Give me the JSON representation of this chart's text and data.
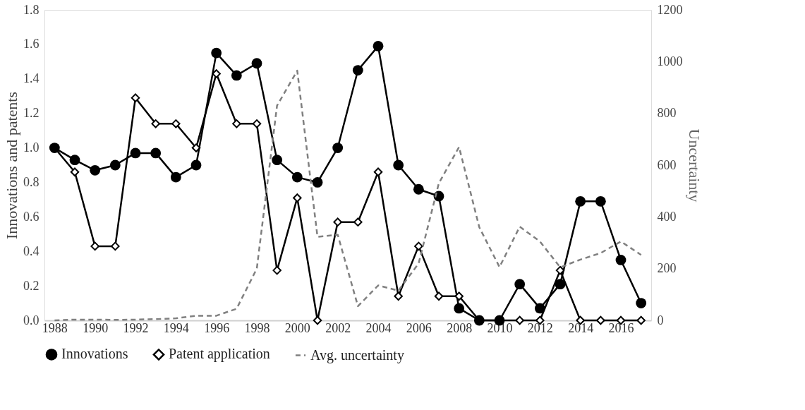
{
  "chart_data": {
    "type": "line",
    "xlabel": null,
    "ylabel": "Innovations and patents",
    "y2label": "Uncertainty",
    "x": [
      1988,
      1989,
      1990,
      1991,
      1992,
      1993,
      1994,
      1995,
      1996,
      1997,
      1998,
      1999,
      2000,
      2001,
      2002,
      2003,
      2004,
      2005,
      2006,
      2007,
      2008,
      2009,
      2010,
      2011,
      2012,
      2013,
      2014,
      2015,
      2016,
      2017
    ],
    "series": [
      {
        "name": "Innovations",
        "color": "#000000",
        "marker": "circle",
        "line_style": "solid",
        "values": [
          1.0,
          0.93,
          0.87,
          0.9,
          0.97,
          0.97,
          0.83,
          0.9,
          1.55,
          1.42,
          1.49,
          0.93,
          0.83,
          0.8,
          1.0,
          1.45,
          1.59,
          0.9,
          0.76,
          0.72,
          0.07,
          0,
          0,
          0.21,
          0.07,
          0.21,
          0.69,
          0.69,
          0.35,
          0.1
        ]
      },
      {
        "name": "Patent application",
        "color": "#000000",
        "marker": "diamond",
        "line_style": "solid",
        "values": [
          1.0,
          0.86,
          0.43,
          0.43,
          1.29,
          1.14,
          1.14,
          1.0,
          1.43,
          1.14,
          1.14,
          0.29,
          0.71,
          0,
          0.57,
          0.57,
          0.86,
          0.14,
          0.43,
          0.14,
          0.14,
          0,
          0,
          0,
          0,
          0.29,
          0,
          0,
          0,
          0
        ]
      },
      {
        "name": "Avg. uncertainty",
        "color": "#808080",
        "marker": "none",
        "line_style": "dashed",
        "axis": "y2",
        "values": [
          0,
          3,
          3,
          2,
          3,
          5,
          8,
          18,
          18,
          45,
          200,
          830,
          965,
          323,
          331,
          55,
          135,
          115,
          220,
          530,
          670,
          360,
          206,
          362,
          305,
          205,
          235,
          260,
          305,
          253
        ]
      }
    ],
    "xlim": [
      1987.5,
      2017.5
    ],
    "xticks": [
      1988,
      1990,
      1992,
      1994,
      1996,
      1998,
      2000,
      2002,
      2004,
      2006,
      2008,
      2010,
      2012,
      2014,
      2016
    ],
    "ylim": [
      0,
      1.8
    ],
    "yticks": [
      {
        "value": 0,
        "label": "0.0"
      },
      {
        "value": 0.2,
        "label": "0.2"
      },
      {
        "value": 0.4,
        "label": "0.4"
      },
      {
        "value": 0.6,
        "label": "0.6"
      },
      {
        "value": 0.8,
        "label": "0.8"
      },
      {
        "value": 1.0,
        "label": "1.0"
      },
      {
        "value": 1.2,
        "label": "1.2"
      },
      {
        "value": 1.4,
        "label": "1.4"
      },
      {
        "value": 1.6,
        "label": "1.6"
      },
      {
        "value": 1.8,
        "label": "1.8"
      }
    ],
    "y2lim": [
      0,
      1200
    ],
    "y2ticks": [
      0,
      200,
      400,
      600,
      800,
      1000,
      1200
    ],
    "legend": "bottom"
  }
}
